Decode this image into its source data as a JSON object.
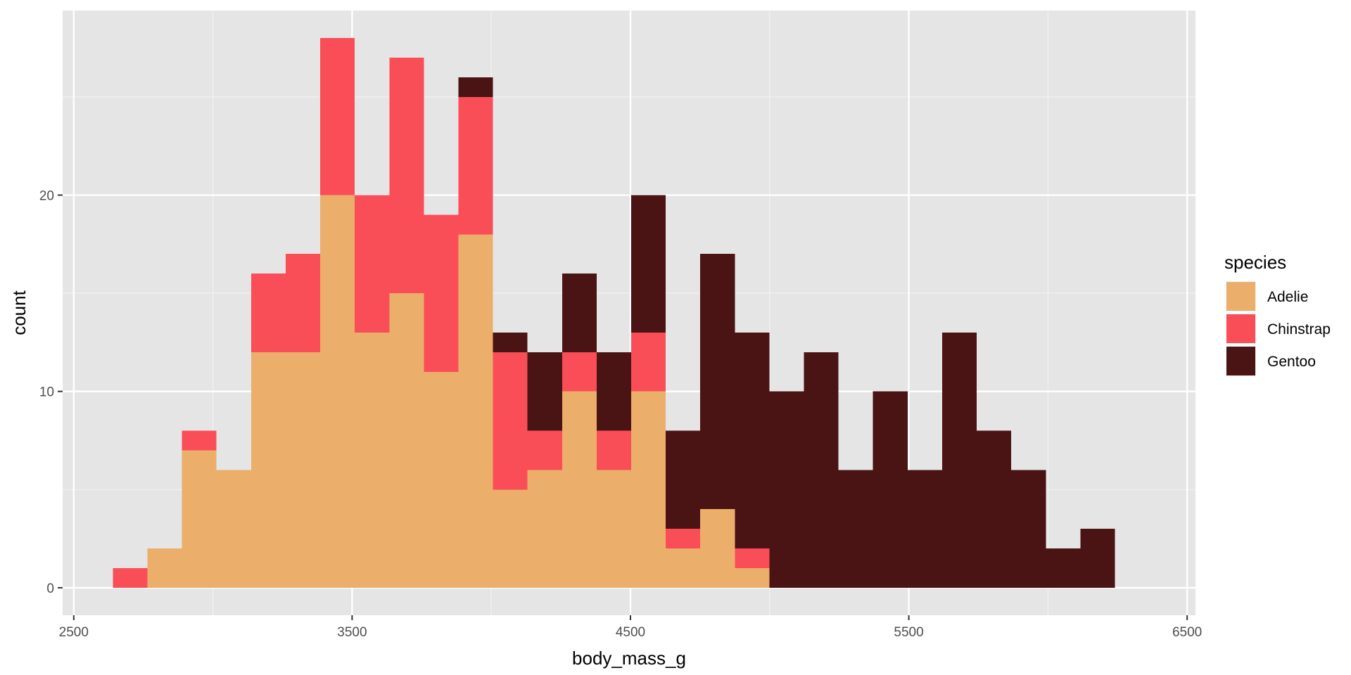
{
  "chart_data": {
    "type": "bar",
    "subtype": "stacked-histogram",
    "xlabel": "body_mass_g",
    "ylabel": "count",
    "xlim": [
      2460,
      6530
    ],
    "ylim": [
      -1.4,
      29.4
    ],
    "x_ticks": [
      2500,
      3500,
      4500,
      5500,
      6500
    ],
    "x_tick_labels": [
      "2500",
      "3500",
      "4500",
      "5500",
      "6500"
    ],
    "y_ticks": [
      0,
      10,
      20
    ],
    "y_tick_labels": [
      "0",
      "10",
      "20"
    ],
    "y_minor_ticks": [
      5,
      15,
      25
    ],
    "x_minor_ticks": [
      3000,
      4000,
      5000,
      6000
    ],
    "grid": true,
    "bin_width": 124.14,
    "bin_starts": [
      2640.52,
      2764.66,
      2888.79,
      3012.93,
      3137.07,
      3261.21,
      3385.34,
      3509.48,
      3633.62,
      3757.76,
      3881.9,
      4006.03,
      4130.17,
      4254.31,
      4378.45,
      4502.59,
      4626.72,
      4750.86,
      4875.0,
      4999.14,
      5123.28,
      5247.41,
      5371.55,
      5495.69,
      5619.83,
      5743.97,
      5868.1,
      5992.24,
      6116.38,
      6240.52
    ],
    "series": [
      {
        "name": "Adelie",
        "color": "#ECAE6B",
        "values": [
          0,
          2,
          7,
          6,
          12,
          12,
          20,
          13,
          15,
          11,
          18,
          5,
          6,
          10,
          6,
          10,
          2,
          4,
          1,
          0,
          0,
          0,
          0,
          0,
          0,
          0,
          0,
          0,
          0,
          0
        ]
      },
      {
        "name": "Chinstrap",
        "color": "#F94E58",
        "values": [
          1,
          0,
          1,
          0,
          4,
          5,
          8,
          7,
          12,
          8,
          7,
          7,
          2,
          2,
          2,
          3,
          1,
          0,
          1,
          0,
          0,
          0,
          0,
          0,
          0,
          0,
          0,
          0,
          0,
          0
        ]
      },
      {
        "name": "Gentoo",
        "color": "#4A1314",
        "values": [
          0,
          0,
          0,
          0,
          0,
          0,
          0,
          0,
          0,
          0,
          1,
          1,
          4,
          4,
          4,
          7,
          5,
          13,
          11,
          10,
          12,
          6,
          10,
          6,
          13,
          8,
          6,
          2,
          3,
          0
        ]
      }
    ],
    "legend": {
      "title": "species",
      "position": "right",
      "entries": [
        "Adelie",
        "Chinstrap",
        "Gentoo"
      ]
    },
    "colors": {
      "panel": "#E5E5E5",
      "grid_major": "#FFFFFF",
      "grid_minor": "#F2F2F2",
      "tick_text": "#4D4D4D"
    }
  }
}
